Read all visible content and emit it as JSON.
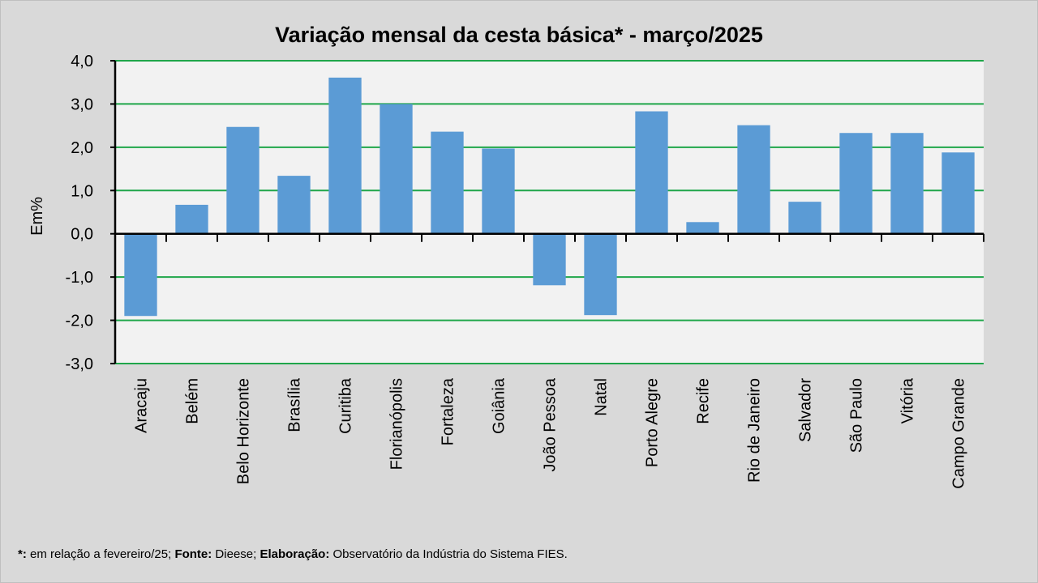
{
  "chart_data": {
    "type": "bar",
    "title": "Variação  mensal da cesta básica* - março/2025",
    "xlabel": "",
    "ylabel": "Em%",
    "ylim": [
      -3,
      4
    ],
    "yticks": [
      4,
      3,
      2,
      1,
      0,
      -1,
      -2,
      -3
    ],
    "ytick_labels": [
      "4,0",
      "3,0",
      "2,0",
      "1,0",
      "0,0",
      "-1,0",
      "-2,0",
      "-3,0"
    ],
    "grid": true,
    "categories": [
      "Aracaju",
      "Belém",
      "Belo Horizonte",
      "Brasília",
      "Curitiba",
      "Florianópolis",
      "Fortaleza",
      "Goiânia",
      "João Pessoa",
      "Natal",
      "Porto Alegre",
      "Recife",
      "Rio de Janeiro",
      "Salvador",
      "São Paulo",
      "Vitória",
      "Campo Grande"
    ],
    "values": [
      -1.9,
      0.67,
      2.47,
      1.34,
      3.61,
      3.0,
      2.36,
      1.97,
      -1.19,
      -1.88,
      2.83,
      0.27,
      2.51,
      0.74,
      2.33,
      2.33,
      1.88
    ],
    "colors": {
      "bar": "#5b9bd5",
      "grid": "#1fa64a",
      "plot_bg": "#f2f2f2"
    }
  },
  "footer": {
    "star_label": "*:",
    "star_text": " em relação a fevereiro/25; ",
    "source_label": "Fonte:",
    "source_text": " Dieese; ",
    "elab_label": "Elaboração:",
    "elab_text": " Observatório da Indústria do Sistema FIES."
  }
}
